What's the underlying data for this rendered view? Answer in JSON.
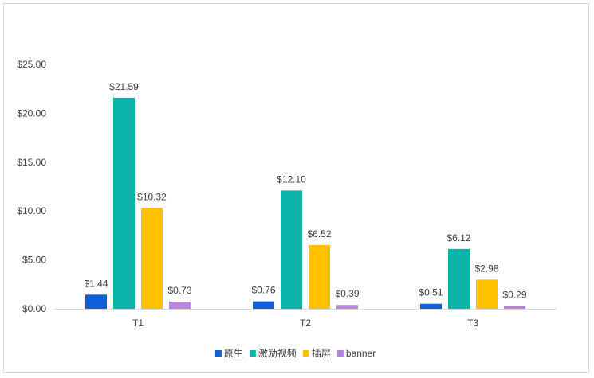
{
  "chart_data": {
    "type": "bar",
    "title": "",
    "xlabel": "",
    "ylabel": "",
    "categories": [
      "T1",
      "T2",
      "T3"
    ],
    "ylim": [
      0,
      25
    ],
    "yticks": [
      "$0.00",
      "$5.00",
      "$10.00",
      "$15.00",
      "$20.00",
      "$25.00"
    ],
    "ytick_values": [
      0,
      5,
      10,
      15,
      20,
      25
    ],
    "grid": false,
    "legend_position": "bottom",
    "series": [
      {
        "name": "原生",
        "color": "#0f5fdc",
        "values": [
          1.44,
          0.76,
          0.51
        ],
        "labels": [
          "$1.44",
          "$0.76",
          "$0.51"
        ]
      },
      {
        "name": "激励视频",
        "color": "#0bb3a8",
        "values": [
          21.59,
          12.1,
          6.12
        ],
        "labels": [
          "$21.59",
          "$12.10",
          "$6.12"
        ]
      },
      {
        "name": "插屏",
        "color": "#ffc000",
        "values": [
          10.32,
          6.52,
          2.98
        ],
        "labels": [
          "$10.32",
          "$6.52",
          "$2.98"
        ]
      },
      {
        "name": "banner",
        "color": "#b784e6",
        "values": [
          0.73,
          0.39,
          0.29
        ],
        "labels": [
          "$0.73",
          "$0.39",
          "$0.29"
        ]
      }
    ]
  }
}
